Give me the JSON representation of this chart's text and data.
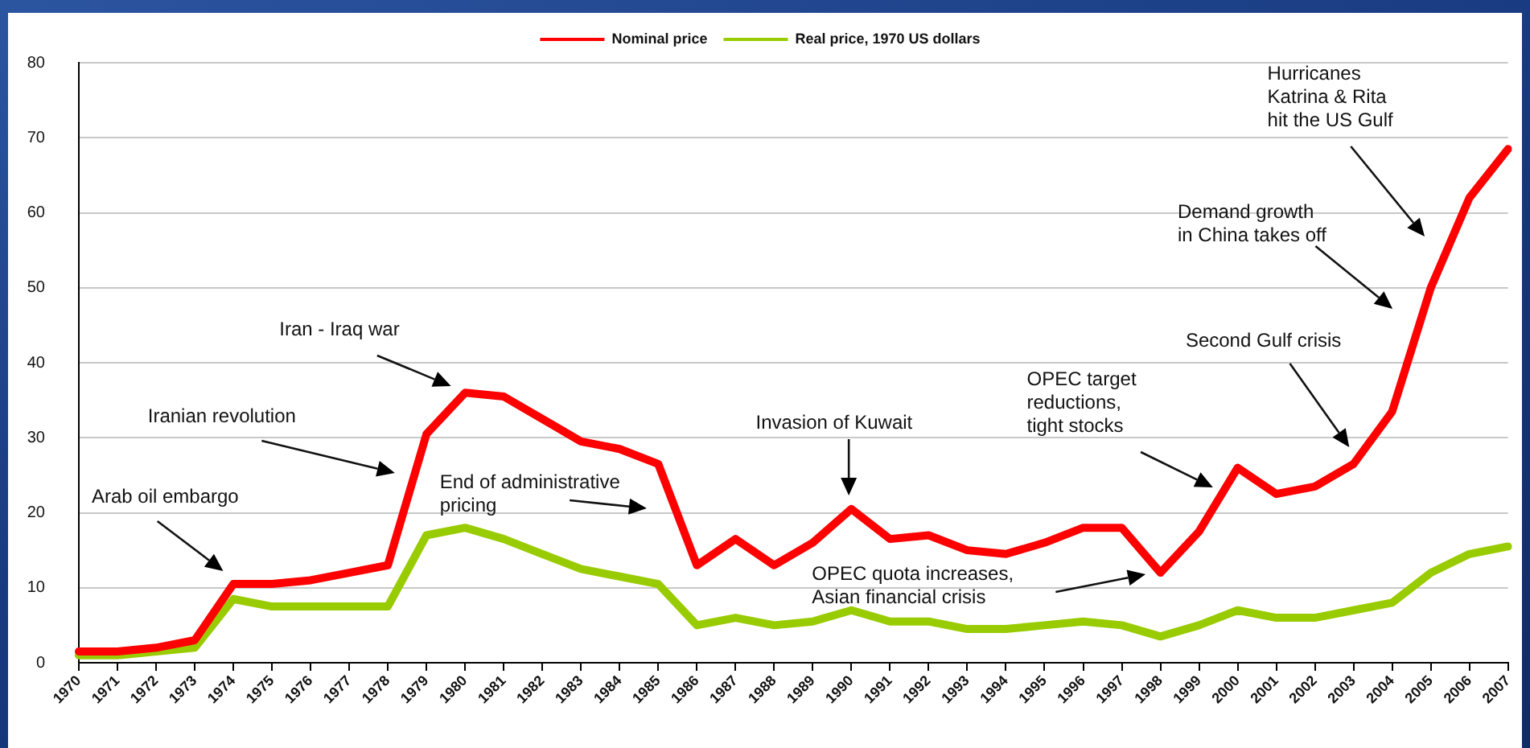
{
  "chart_data": {
    "type": "line",
    "categories": [
      "1970",
      "1971",
      "1972",
      "1973",
      "1974",
      "1975",
      "1976",
      "1977",
      "1978",
      "1979",
      "1980",
      "1981",
      "1982",
      "1983",
      "1984",
      "1985",
      "1986",
      "1987",
      "1988",
      "1989",
      "1990",
      "1991",
      "1992",
      "1993",
      "1994",
      "1995",
      "1996",
      "1997",
      "1998",
      "1999",
      "2000",
      "2001",
      "2002",
      "2003",
      "2004",
      "2005",
      "2006",
      "2007"
    ],
    "series": [
      {
        "name": "Nominal price",
        "color": "#ff0000",
        "values": [
          1.5,
          1.5,
          2,
          3,
          10.5,
          10.5,
          11,
          12,
          13,
          30.5,
          36,
          35.5,
          32.5,
          29.5,
          28.5,
          26.5,
          13,
          16.5,
          13,
          16,
          20.5,
          16.5,
          17,
          15,
          14.5,
          16,
          18,
          18,
          12,
          17.5,
          26,
          22.5,
          23.5,
          26.5,
          33.5,
          50,
          62,
          68.5
        ]
      },
      {
        "name": "Real price, 1970 US dollars",
        "color": "#99cc00",
        "values": [
          1,
          1,
          1.5,
          2,
          8.5,
          7.5,
          7.5,
          7.5,
          7.5,
          17,
          18,
          16.5,
          14.5,
          12.5,
          11.5,
          10.5,
          5,
          6,
          5,
          5.5,
          7,
          5.5,
          5.5,
          4.5,
          4.5,
          5,
          5.5,
          5,
          3.5,
          5,
          7,
          6,
          6,
          7,
          8,
          12,
          14.5,
          15.5
        ]
      }
    ],
    "ylim": [
      0,
      80
    ],
    "yticks": [
      0,
      10,
      20,
      30,
      40,
      50,
      60,
      70,
      80
    ],
    "grid": "y",
    "legend": "top",
    "marker": "none",
    "line_style": "solid",
    "annotations": [
      "Arab oil embargo",
      "Iranian revolution",
      "Iran - Iraq war",
      "End of administrative\npricing",
      "Invasion of Kuwait",
      "OPEC quota increases,\nAsian financial crisis",
      "OPEC target\nreductions,\ntight stocks",
      "Second Gulf crisis",
      "Demand growth\nin China takes off",
      "Hurricanes\nKatrina & Rita\nhit the US Gulf"
    ]
  }
}
